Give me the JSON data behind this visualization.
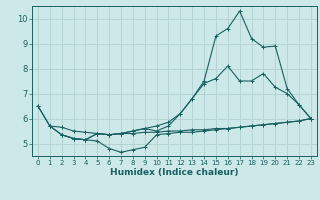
{
  "title": "",
  "xlabel": "Humidex (Indice chaleur)",
  "ylabel": "",
  "bg_color": "#cce8e8",
  "grid_color": "#b0d0d0",
  "line_color": "#1a6060",
  "xlim": [
    -0.5,
    23.5
  ],
  "ylim": [
    4.5,
    10.5
  ],
  "xticks": [
    0,
    1,
    2,
    3,
    4,
    5,
    6,
    7,
    8,
    9,
    10,
    11,
    12,
    13,
    14,
    15,
    16,
    17,
    18,
    19,
    20,
    21,
    22,
    23
  ],
  "yticks": [
    5,
    6,
    7,
    8,
    9,
    10
  ],
  "series": [
    {
      "x": [
        0,
        1,
        2,
        3,
        4,
        5,
        6,
        7,
        8,
        9,
        10,
        11,
        12,
        13,
        14,
        15,
        16,
        17,
        18,
        19,
        20,
        21,
        22,
        23
      ],
      "y": [
        6.5,
        5.7,
        5.65,
        5.5,
        5.45,
        5.4,
        5.35,
        5.4,
        5.4,
        5.45,
        5.45,
        5.5,
        5.5,
        5.55,
        5.55,
        5.6,
        5.6,
        5.65,
        5.7,
        5.75,
        5.8,
        5.85,
        5.9,
        6.0
      ]
    },
    {
      "x": [
        1,
        2,
        3,
        4,
        5,
        6,
        7,
        8,
        9,
        10,
        11,
        12,
        13,
        14,
        15,
        16,
        17,
        18,
        19,
        20,
        21,
        22,
        23
      ],
      "y": [
        5.7,
        5.35,
        5.2,
        5.15,
        5.1,
        4.8,
        4.65,
        4.75,
        4.85,
        5.35,
        5.4,
        5.45,
        5.45,
        5.5,
        5.55,
        5.6,
        5.65,
        5.7,
        5.75,
        5.8,
        5.85,
        5.9,
        6.0
      ]
    },
    {
      "x": [
        0,
        1,
        2,
        3,
        4,
        5,
        6,
        7,
        8,
        9,
        10,
        11,
        12,
        13,
        14,
        15,
        16,
        17,
        18,
        19,
        20,
        21,
        22,
        23
      ],
      "y": [
        6.5,
        5.7,
        5.35,
        5.2,
        5.15,
        5.4,
        5.35,
        5.4,
        5.5,
        5.6,
        5.7,
        5.85,
        6.2,
        6.8,
        7.4,
        7.6,
        8.1,
        7.5,
        7.5,
        7.8,
        7.25,
        7.0,
        6.55,
        6.0
      ]
    },
    {
      "x": [
        2,
        3,
        4,
        5,
        6,
        7,
        8,
        9,
        10,
        11,
        12,
        13,
        14,
        15,
        16,
        17,
        18,
        19,
        20,
        21,
        22,
        23
      ],
      "y": [
        5.35,
        5.2,
        5.15,
        5.4,
        5.35,
        5.4,
        5.5,
        5.6,
        5.5,
        5.7,
        6.2,
        6.8,
        7.5,
        9.3,
        9.6,
        10.3,
        9.2,
        8.85,
        8.9,
        7.2,
        6.55,
        6.0
      ]
    }
  ]
}
